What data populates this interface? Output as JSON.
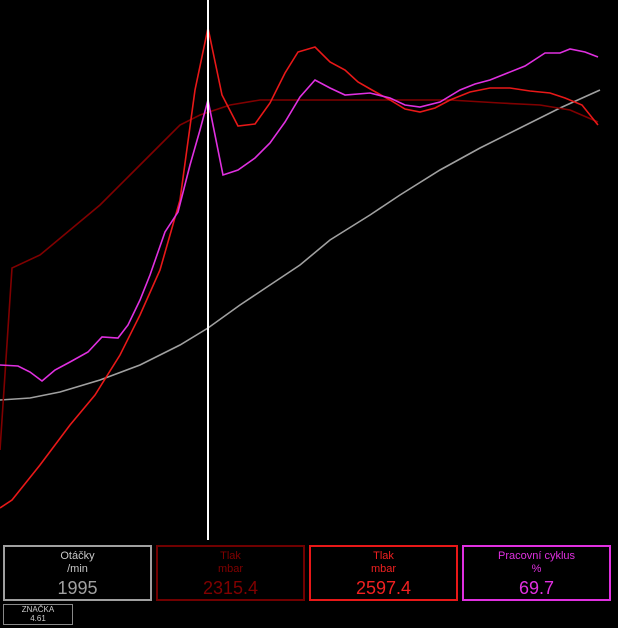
{
  "panels": [
    {
      "label": "Otáčky",
      "unit": "/min",
      "value": "1995"
    },
    {
      "label": "Tlak",
      "unit": "mbar",
      "value": "2315.4"
    },
    {
      "label": "Tlak",
      "unit": "mbar",
      "value": "2597.4"
    },
    {
      "label": "Pracovní cyklus",
      "unit": "%",
      "value": "69.7"
    }
  ],
  "marker_button": {
    "label": "ZNAČKA",
    "value": "4.61"
  }
}
